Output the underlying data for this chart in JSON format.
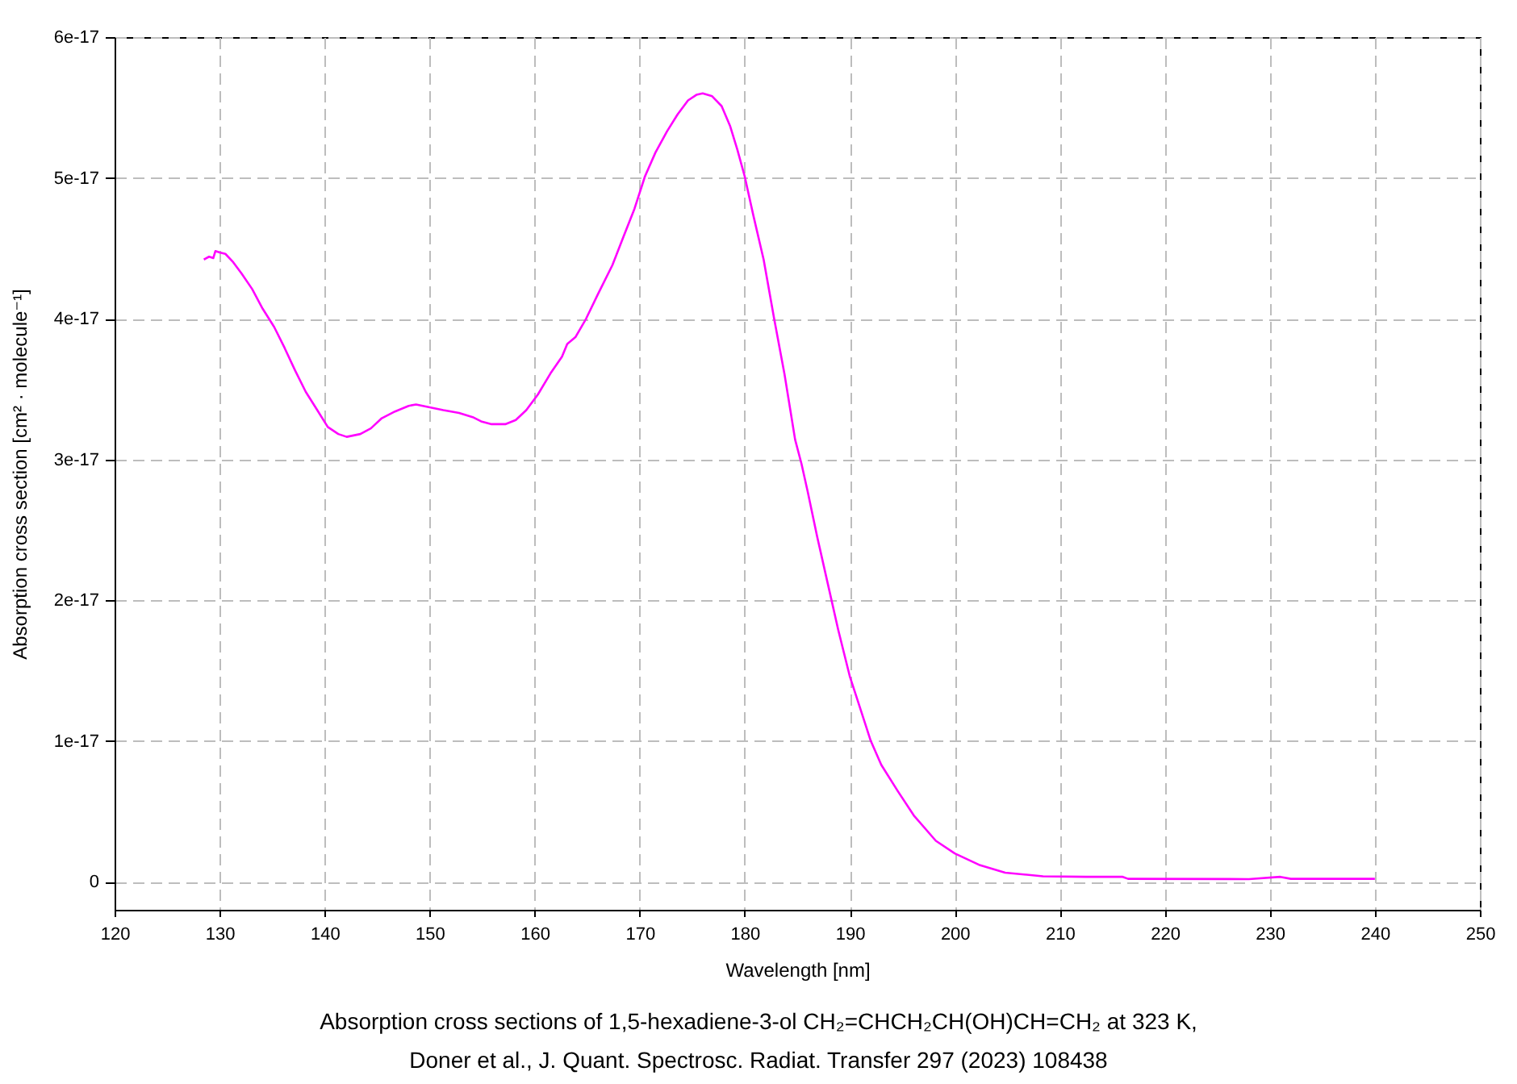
{
  "chart_data": {
    "type": "line",
    "xlabel": "Wavelength [nm]",
    "ylabel": "Absorption cross section [cm² · molecule⁻¹]",
    "annotations": [
      "Absorption cross sections of 1,5-hexadiene-3-ol CH₂=CHCH₂CH(OH)CH=CH₂ at 323 K,",
      "Doner et al., J. Quant. Spectrosc. Radiat. Transfer 297 (2023) 108438"
    ],
    "color": "#ff00ff",
    "x": [
      128.5,
      129.0,
      129.4,
      129.6,
      130.0,
      130.55,
      131.3,
      132.1,
      133.1,
      134.1,
      135.2,
      136.2,
      137.2,
      138.2,
      139.3,
      140.3,
      141.3,
      142.1,
      143.4,
      144.4,
      145.4,
      146.7,
      148.0,
      148.7,
      150.0,
      151.3,
      152.8,
      154.1,
      154.9,
      155.9,
      157.2,
      158.2,
      159.2,
      160.3,
      161.5,
      162.6,
      163.1,
      163.9,
      164.9,
      166.0,
      167.4,
      168.5,
      169.5,
      170.5,
      171.5,
      172.6,
      173.6,
      174.6,
      175.4,
      176.0,
      176.9,
      177.8,
      178.6,
      179.3,
      180.0,
      180.8,
      181.8,
      182.8,
      183.8,
      184.8,
      185.4,
      186.0,
      186.9,
      187.9,
      188.9,
      190.0,
      191.0,
      192.0,
      193.0,
      194.6,
      196.1,
      198.2,
      200.0,
      202.3,
      204.8,
      208.4,
      212.5,
      216.0,
      216.5,
      228.0,
      231.0,
      232.0,
      240.0
    ],
    "values": [
      4.42e-17,
      4.44e-17,
      4.43e-17,
      4.48e-17,
      4.47e-17,
      4.46e-17,
      4.4e-17,
      4.32e-17,
      4.21e-17,
      4.07e-17,
      3.94e-17,
      3.79e-17,
      3.63e-17,
      3.48e-17,
      3.35e-17,
      3.23e-17,
      3.18e-17,
      3.16e-17,
      3.18e-17,
      3.22e-17,
      3.29e-17,
      3.34e-17,
      3.38e-17,
      3.39e-17,
      3.37e-17,
      3.35e-17,
      3.33e-17,
      3.3e-17,
      3.27e-17,
      3.25e-17,
      3.25e-17,
      3.28e-17,
      3.35e-17,
      3.46e-17,
      3.61e-17,
      3.73e-17,
      3.82e-17,
      3.87e-17,
      4e-17,
      4.17e-17,
      4.38e-17,
      4.59e-17,
      4.78e-17,
      5.01e-17,
      5.18e-17,
      5.33e-17,
      5.45e-17,
      5.55e-17,
      5.59e-17,
      5.6e-17,
      5.58e-17,
      5.51e-17,
      5.37e-17,
      5.2e-17,
      5.01e-17,
      4.74e-17,
      4.42e-17,
      4e-17,
      3.6e-17,
      3.14e-17,
      2.97e-17,
      2.77e-17,
      2.45e-17,
      2.12e-17,
      1.79e-17,
      1.46e-17,
      1.23e-17,
      1e-17,
      8.3e-18,
      6.4e-18,
      4.7e-18,
      2.9e-18,
      2e-18,
      1.2e-18,
      6.4e-19,
      3.8e-19,
      3.4e-19,
      3.4e-19,
      2e-19,
      1.8e-19,
      3.4e-19,
      2e-19,
      2e-19
    ],
    "xlim": [
      120,
      250
    ],
    "xticks": [
      120,
      130,
      140,
      150,
      160,
      170,
      180,
      190,
      200,
      210,
      220,
      230,
      240,
      250
    ],
    "ylim": [
      -2e-18,
      6e-17
    ],
    "yticks": [
      0,
      1e-17,
      2e-17,
      3e-17,
      4e-17,
      5e-17,
      6e-17
    ],
    "grid": true
  }
}
